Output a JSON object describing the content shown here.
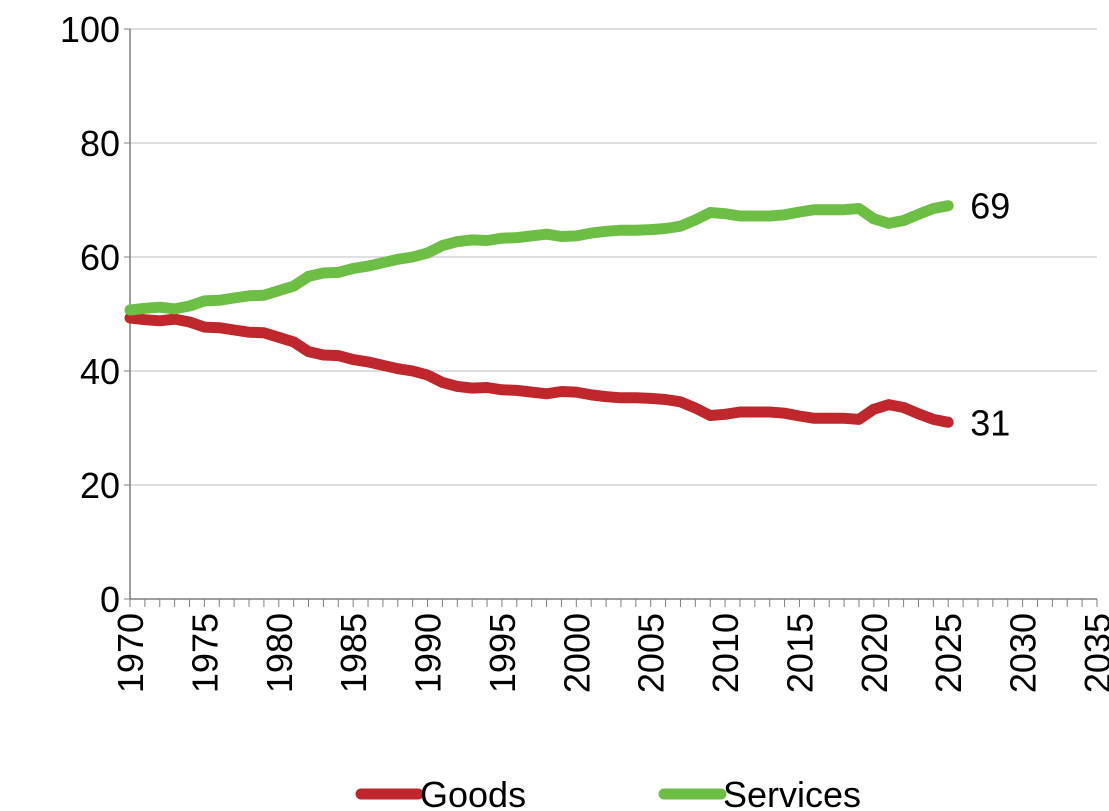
{
  "chart_data": {
    "type": "line",
    "title": "",
    "xlabel": "",
    "ylabel": "",
    "xlim": [
      1970,
      2035
    ],
    "ylim": [
      0,
      100
    ],
    "y_ticks": [
      "0",
      "20",
      "40",
      "60",
      "80",
      "100"
    ],
    "x_ticks": [
      "1970",
      "1975",
      "1980",
      "1985",
      "1990",
      "1995",
      "2000",
      "2005",
      "2010",
      "2015",
      "2020",
      "2025",
      "2030",
      "2035"
    ],
    "grid": "horizontal",
    "legend_position": "bottom",
    "x": [
      1970,
      1971,
      1972,
      1973,
      1974,
      1975,
      1976,
      1977,
      1978,
      1979,
      1980,
      1981,
      1982,
      1983,
      1984,
      1985,
      1986,
      1987,
      1988,
      1989,
      1990,
      1991,
      1992,
      1993,
      1994,
      1995,
      1996,
      1997,
      1998,
      1999,
      2000,
      2001,
      2002,
      2003,
      2004,
      2005,
      2006,
      2007,
      2008,
      2009,
      2010,
      2011,
      2012,
      2013,
      2014,
      2015,
      2016,
      2017,
      2018,
      2019,
      2020,
      2021,
      2022,
      2023,
      2024,
      2025
    ],
    "series": [
      {
        "name": "Goods",
        "color": "#C0272D",
        "values": [
          49.3,
          49.0,
          48.8,
          49.1,
          48.6,
          47.7,
          47.6,
          47.2,
          46.8,
          46.7,
          45.9,
          45.1,
          43.4,
          42.8,
          42.7,
          42.0,
          41.6,
          41.0,
          40.4,
          40.0,
          39.3,
          38.0,
          37.3,
          37.0,
          37.1,
          36.7,
          36.6,
          36.3,
          36.0,
          36.4,
          36.3,
          35.8,
          35.5,
          35.3,
          35.3,
          35.2,
          35.0,
          34.6,
          33.5,
          32.2,
          32.4,
          32.8,
          32.8,
          32.8,
          32.6,
          32.1,
          31.7,
          31.7,
          31.7,
          31.5,
          33.3,
          34.1,
          33.6,
          32.5,
          31.5,
          31.0
        ],
        "end_label": "31"
      },
      {
        "name": "Services",
        "color": "#6DBE45",
        "values": [
          50.7,
          51.0,
          51.2,
          50.9,
          51.4,
          52.3,
          52.4,
          52.8,
          53.2,
          53.3,
          54.1,
          54.9,
          56.6,
          57.2,
          57.3,
          58.0,
          58.4,
          59.0,
          59.6,
          60.0,
          60.7,
          62.0,
          62.7,
          63.0,
          62.9,
          63.3,
          63.4,
          63.7,
          64.0,
          63.6,
          63.7,
          64.2,
          64.5,
          64.7,
          64.7,
          64.8,
          65.0,
          65.4,
          66.5,
          67.8,
          67.6,
          67.2,
          67.2,
          67.2,
          67.4,
          67.9,
          68.3,
          68.3,
          68.3,
          68.5,
          66.7,
          65.9,
          66.4,
          67.5,
          68.5,
          69.0
        ],
        "end_label": "69"
      }
    ]
  }
}
